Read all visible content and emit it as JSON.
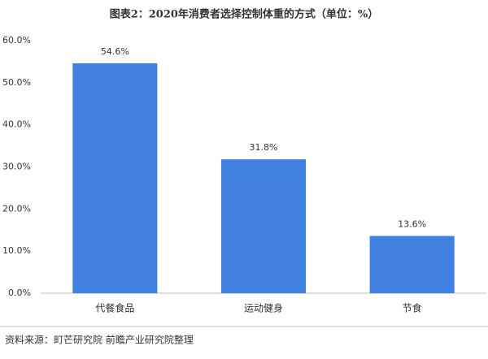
{
  "chart_data": {
    "type": "bar",
    "title": "图表2：2020年消费者选择控制体重的方式（单位：%）",
    "categories": [
      "代餐食品",
      "运动健身",
      "节食"
    ],
    "values": [
      54.6,
      31.8,
      13.6
    ],
    "value_labels": [
      "54.6%",
      "31.8%",
      "13.6%"
    ],
    "color": "#3f80e0",
    "ylim": [
      0,
      60
    ],
    "yticks": [
      {
        "value": 0,
        "label": "0.0%"
      },
      {
        "value": 10,
        "label": "10.0%"
      },
      {
        "value": 20,
        "label": "20.0%"
      },
      {
        "value": 30,
        "label": "30.0%"
      },
      {
        "value": 40,
        "label": "40.0%"
      },
      {
        "value": 50,
        "label": "50.0%"
      },
      {
        "value": 60,
        "label": "60.0%"
      }
    ],
    "grid": false,
    "source": "资料来源：町芒研究院 前瞻产业研究院整理"
  }
}
